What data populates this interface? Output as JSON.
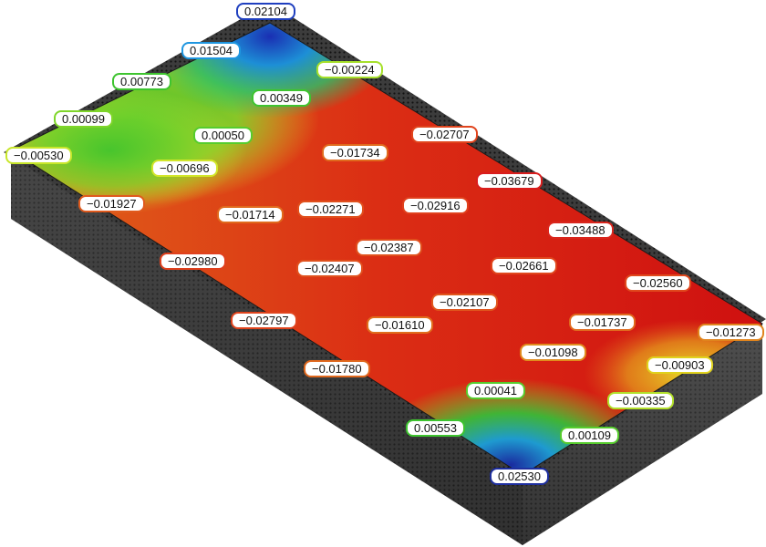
{
  "labels": [
    {
      "text": "0.02104",
      "color": "#1f3fbf"
    },
    {
      "text": "0.01504",
      "color": "#1f96e0"
    },
    {
      "text": "−0.00224",
      "color": "#a6e02a"
    },
    {
      "text": "0.00773",
      "color": "#3ec42f"
    },
    {
      "text": "0.00349",
      "color": "#3ec42f"
    },
    {
      "text": "0.00099",
      "color": "#7fd62a"
    },
    {
      "text": "0.00050",
      "color": "#56cc2d"
    },
    {
      "text": "−0.02707",
      "color": "#e0441d"
    },
    {
      "text": "−0.00530",
      "color": "#c8e62a"
    },
    {
      "text": "−0.01734",
      "color": "#e06a1d"
    },
    {
      "text": "−0.00696",
      "color": "#d2e62a"
    },
    {
      "text": "−0.03679",
      "color": "#d91d1d"
    },
    {
      "text": "−0.01927",
      "color": "#e05a1d"
    },
    {
      "text": "−0.01714",
      "color": "#e06a1d"
    },
    {
      "text": "−0.02271",
      "color": "#e0501d"
    },
    {
      "text": "−0.02916",
      "color": "#e0401d"
    },
    {
      "text": "−0.03488",
      "color": "#d9261d"
    },
    {
      "text": "−0.02387",
      "color": "#e0501d"
    },
    {
      "text": "−0.02980",
      "color": "#e0401d"
    },
    {
      "text": "−0.02407",
      "color": "#e0501d"
    },
    {
      "text": "−0.02661",
      "color": "#e0461d"
    },
    {
      "text": "−0.02560",
      "color": "#e0481d"
    },
    {
      "text": "−0.02107",
      "color": "#e0561d"
    },
    {
      "text": "−0.02797",
      "color": "#e0441d"
    },
    {
      "text": "−0.01610",
      "color": "#e06e1d"
    },
    {
      "text": "−0.01737",
      "color": "#e06a1d"
    },
    {
      "text": "−0.01273",
      "color": "#e0841d"
    },
    {
      "text": "−0.01098",
      "color": "#e08c1d"
    },
    {
      "text": "−0.01780",
      "color": "#e0681d"
    },
    {
      "text": "−0.00903",
      "color": "#e0d21d"
    },
    {
      "text": "0.00041",
      "color": "#56cc2d"
    },
    {
      "text": "−0.00335",
      "color": "#b2e02a"
    },
    {
      "text": "0.00553",
      "color": "#3ec42f"
    },
    {
      "text": "0.00109",
      "color": "#56cc2d"
    },
    {
      "text": "0.02530",
      "color": "#1f2f9f"
    }
  ]
}
